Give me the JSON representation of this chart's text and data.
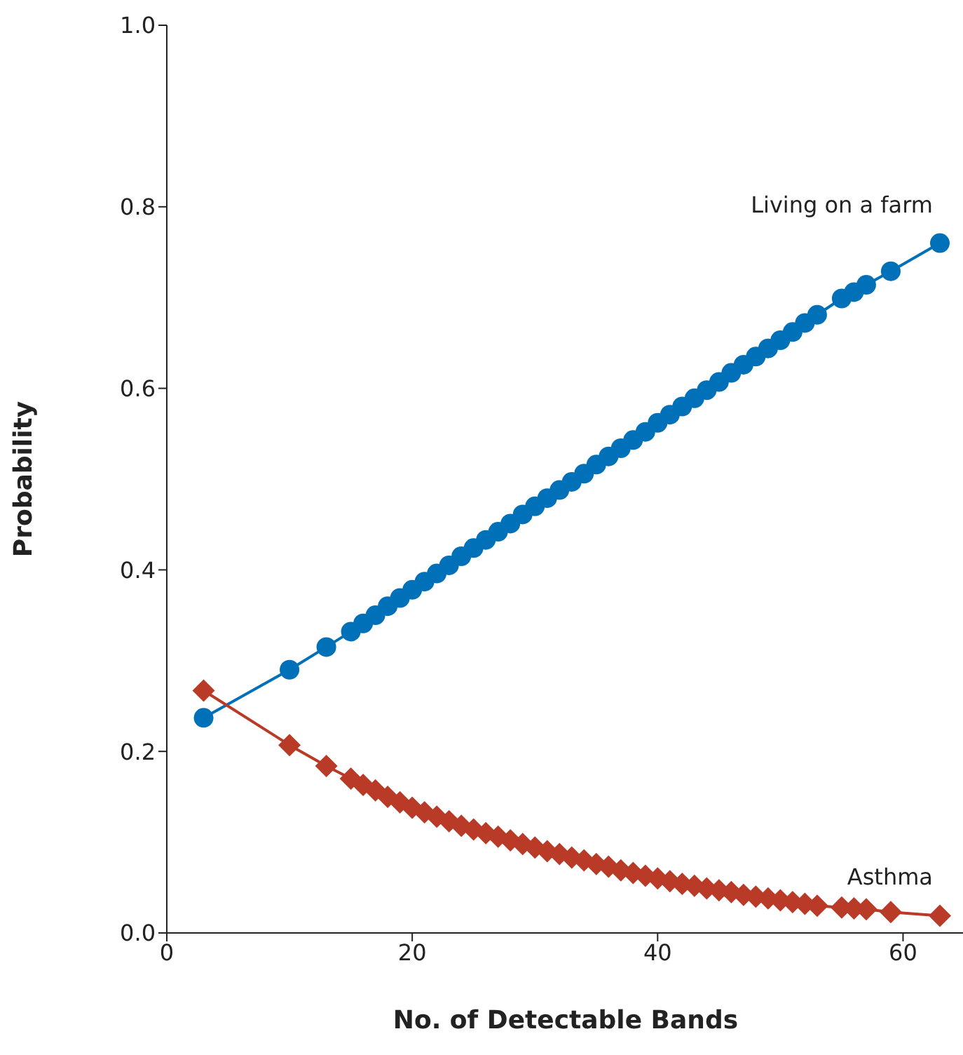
{
  "chart_data": {
    "type": "line",
    "xlabel": "No. of Detectable Bands",
    "ylabel": "Probability",
    "xlim": [
      0,
      65
    ],
    "xticks": [
      0,
      20,
      40,
      60
    ],
    "ylim": [
      0,
      1
    ],
    "yticks": [
      {
        "value": 0,
        "label": "0.0"
      },
      0.2,
      0.4,
      0.6,
      0.8,
      {
        "value": 1,
        "label": "1.0"
      }
    ],
    "legend": false,
    "series": [
      {
        "name": "Living on a farm",
        "color": "#0070b8",
        "marker": "circle",
        "x": [
          3,
          10,
          13,
          15,
          16,
          17,
          18,
          19,
          20,
          21,
          22,
          23,
          24,
          25,
          26,
          27,
          28,
          29,
          30,
          31,
          32,
          33,
          34,
          35,
          36,
          37,
          38,
          39,
          40,
          41,
          42,
          43,
          44,
          45,
          46,
          47,
          48,
          49,
          50,
          51,
          52,
          53,
          55,
          56,
          57,
          59,
          63
        ],
        "values": [
          0.237,
          0.29,
          0.315,
          0.332,
          0.341,
          0.35,
          0.36,
          0.369,
          0.378,
          0.387,
          0.396,
          0.405,
          0.415,
          0.424,
          0.433,
          0.442,
          0.451,
          0.461,
          0.47,
          0.479,
          0.488,
          0.497,
          0.506,
          0.516,
          0.525,
          0.534,
          0.543,
          0.552,
          0.562,
          0.571,
          0.58,
          0.589,
          0.598,
          0.607,
          0.617,
          0.626,
          0.635,
          0.644,
          0.653,
          0.662,
          0.672,
          0.681,
          0.699,
          0.706,
          0.714,
          0.729,
          0.76
        ]
      },
      {
        "name": "Asthma",
        "color": "#b93a26",
        "marker": "diamond",
        "x": [
          3,
          10,
          13,
          15,
          16,
          17,
          18,
          19,
          20,
          21,
          22,
          23,
          24,
          25,
          26,
          27,
          28,
          29,
          30,
          31,
          32,
          33,
          34,
          35,
          36,
          37,
          38,
          39,
          40,
          41,
          42,
          43,
          44,
          45,
          46,
          47,
          48,
          49,
          50,
          51,
          52,
          53,
          55,
          56,
          57,
          59,
          63
        ],
        "values": [
          0.267,
          0.207,
          0.184,
          0.17,
          0.163,
          0.157,
          0.15,
          0.144,
          0.138,
          0.133,
          0.128,
          0.123,
          0.118,
          0.114,
          0.11,
          0.106,
          0.102,
          0.098,
          0.094,
          0.09,
          0.087,
          0.083,
          0.08,
          0.076,
          0.073,
          0.069,
          0.066,
          0.063,
          0.06,
          0.057,
          0.054,
          0.052,
          0.049,
          0.047,
          0.045,
          0.042,
          0.04,
          0.038,
          0.036,
          0.034,
          0.032,
          0.03,
          0.028,
          0.027,
          0.026,
          0.023,
          0.019
        ]
      }
    ]
  }
}
